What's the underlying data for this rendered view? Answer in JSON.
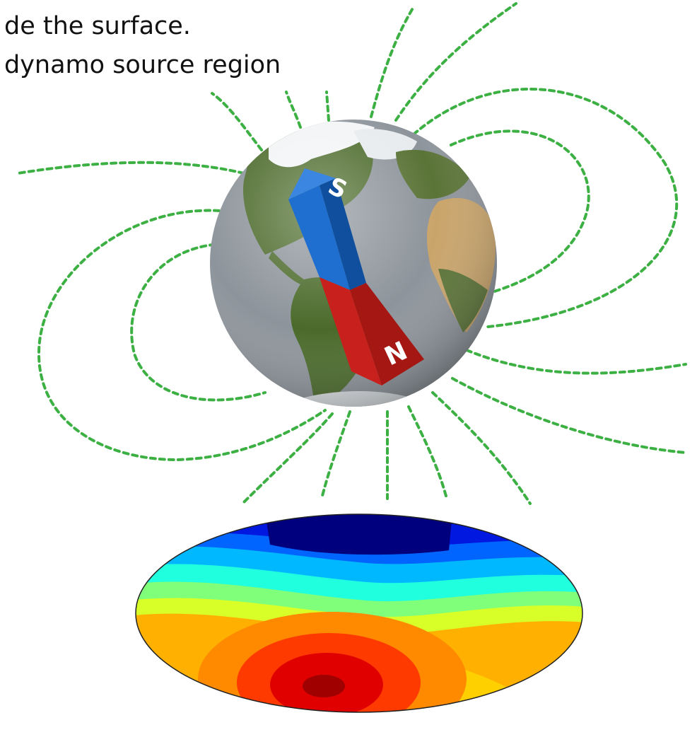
{
  "captions": {
    "line1": "de the surface.",
    "line2": "dynamo source region"
  },
  "magnet": {
    "south_label": "S",
    "north_label": "N",
    "south_color": "#1f6fd0",
    "north_color": "#c8201c"
  },
  "colors": {
    "field_lines": "#3cb043",
    "ocean": "#8d949b",
    "land": "#4d6b2c",
    "desert": "#c9a46a",
    "ice": "#f2f4f6"
  },
  "icons": {
    "earth": "earth-globe-icon",
    "magnet": "bar-magnet-icon"
  },
  "field_map": {
    "colormap": "jet",
    "projection": "hammer-ellipse",
    "top_band_color": "#00007f",
    "bottom_spot_color": "#a00000"
  }
}
